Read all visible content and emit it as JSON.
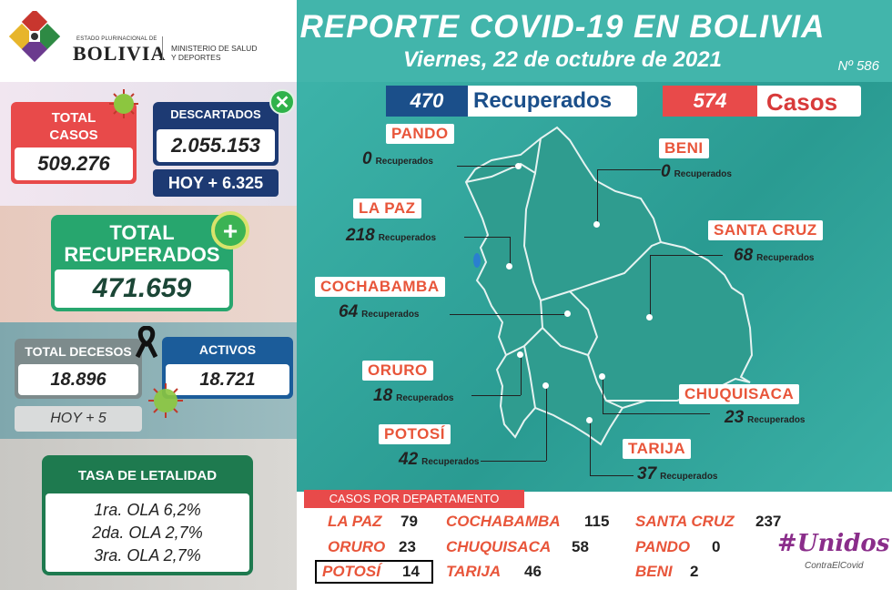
{
  "header": {
    "logo_small": "ESTADO PLURINACIONAL DE",
    "logo_big": "BOLIVIA",
    "ministry": "MINISTERIO DE SALUD Y DEPORTES",
    "title": "REPORTE COVID-19 EN BOLIVIA",
    "date": "Viernes, 22 de octubre de 2021",
    "report_number": "Nº 586"
  },
  "totals": {
    "total_casos_label": "TOTAL CASOS",
    "total_casos": "509.276",
    "descartados_label": "DESCARTADOS",
    "descartados": "2.055.153",
    "descartados_hoy": "HOY + 6.325",
    "recuperados_label": "TOTAL RECUPERADOS",
    "recuperados": "471.659",
    "decesos_label": "TOTAL DECESOS",
    "decesos": "18.896",
    "decesos_hoy": "HOY +  5",
    "activos_label": "ACTIVOS",
    "activos": "18.721"
  },
  "letalidad": {
    "label": "TASA DE LETALIDAD",
    "rows": [
      "1ra. OLA 6,2%",
      "2da. OLA 2,7%",
      "3ra. OLA 2,7%"
    ]
  },
  "daily": {
    "recuperados_num": "470",
    "recuperados_label": "Recuperados",
    "casos_num": "574",
    "casos_label": "Casos"
  },
  "map": {
    "recuperados_word": "Recuperados",
    "departments": [
      {
        "name": "PANDO",
        "value": "0"
      },
      {
        "name": "BENI",
        "value": "0"
      },
      {
        "name": "LA PAZ",
        "value": "218"
      },
      {
        "name": "SANTA CRUZ",
        "value": "68"
      },
      {
        "name": "COCHABAMBA",
        "value": "64"
      },
      {
        "name": "ORURO",
        "value": "18"
      },
      {
        "name": "CHUQUISACA",
        "value": "23"
      },
      {
        "name": "POTOSÍ",
        "value": "42"
      },
      {
        "name": "TARIJA",
        "value": "37"
      }
    ]
  },
  "casos_por_departamento": {
    "label": "CASOS POR DEPARTAMENTO",
    "rows": [
      {
        "name": "LA PAZ",
        "value": "79"
      },
      {
        "name": "COCHABAMBA",
        "value": "115"
      },
      {
        "name": "SANTA CRUZ",
        "value": "237"
      },
      {
        "name": "ORURO",
        "value": "23"
      },
      {
        "name": "CHUQUISACA",
        "value": "58"
      },
      {
        "name": "PANDO",
        "value": "0"
      },
      {
        "name": "POTOSÍ",
        "value": "14"
      },
      {
        "name": "TARIJA",
        "value": "46"
      },
      {
        "name": "BENI",
        "value": "2"
      }
    ]
  },
  "campaign": {
    "hashtag": "#Unidos",
    "tagline": "ContraElCovid"
  },
  "colors": {
    "teal": "#3fb6ac",
    "red": "#e84a4a",
    "navy": "#1d3a73",
    "green": "#27a66e",
    "orange_text": "#e8553a"
  }
}
